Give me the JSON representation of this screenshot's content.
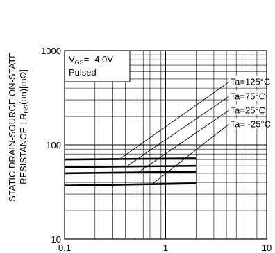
{
  "chart_data": {
    "type": "line",
    "xscale": "log",
    "yscale": "log",
    "xlim": [
      0.1,
      10
    ],
    "ylim": [
      10,
      1000
    ],
    "grid": true,
    "ylabel_line1": "STATIC DRAIN-SOURCE ON-STATE",
    "ylabel_line2_prefix": "RESISTANCE : R",
    "ylabel_line2_sub": "DS",
    "ylabel_line2_suffix": "(on)[mΩ]",
    "xticks": [
      {
        "value": 0.1,
        "label": "0.1"
      },
      {
        "value": 1,
        "label": "1"
      },
      {
        "value": 10,
        "label": "10"
      }
    ],
    "yticks": [
      {
        "value": 10,
        "label": "10"
      },
      {
        "value": 100,
        "label": "100"
      },
      {
        "value": 1000,
        "label": "1000"
      }
    ],
    "conditions": {
      "vgs_prefix": "V",
      "vgs_sub": "GS",
      "vgs_suffix": "= -4.0V",
      "mode": "Pulsed"
    },
    "series": [
      {
        "name": "Ta=125°C",
        "x": [
          0.1,
          2
        ],
        "y": [
          70,
          72
        ],
        "label_at": [
          4.3,
          470
        ],
        "leader_from": [
          0.36,
          72
        ]
      },
      {
        "name": "Ta=75°C",
        "x": [
          0.1,
          2
        ],
        "y": [
          58,
          60
        ],
        "label_at": [
          4.3,
          330
        ],
        "leader_from": [
          0.42,
          60
        ]
      },
      {
        "name": "Ta=25°C",
        "x": [
          0.1,
          2
        ],
        "y": [
          50,
          52
        ],
        "label_at": [
          4.3,
          235
        ],
        "leader_from": [
          0.55,
          52
        ]
      },
      {
        "name": "Ta= -25°C",
        "x": [
          0.1,
          2
        ],
        "y": [
          37,
          39
        ],
        "label_at": [
          4.3,
          168
        ],
        "leader_from": [
          0.75,
          39
        ]
      }
    ]
  }
}
